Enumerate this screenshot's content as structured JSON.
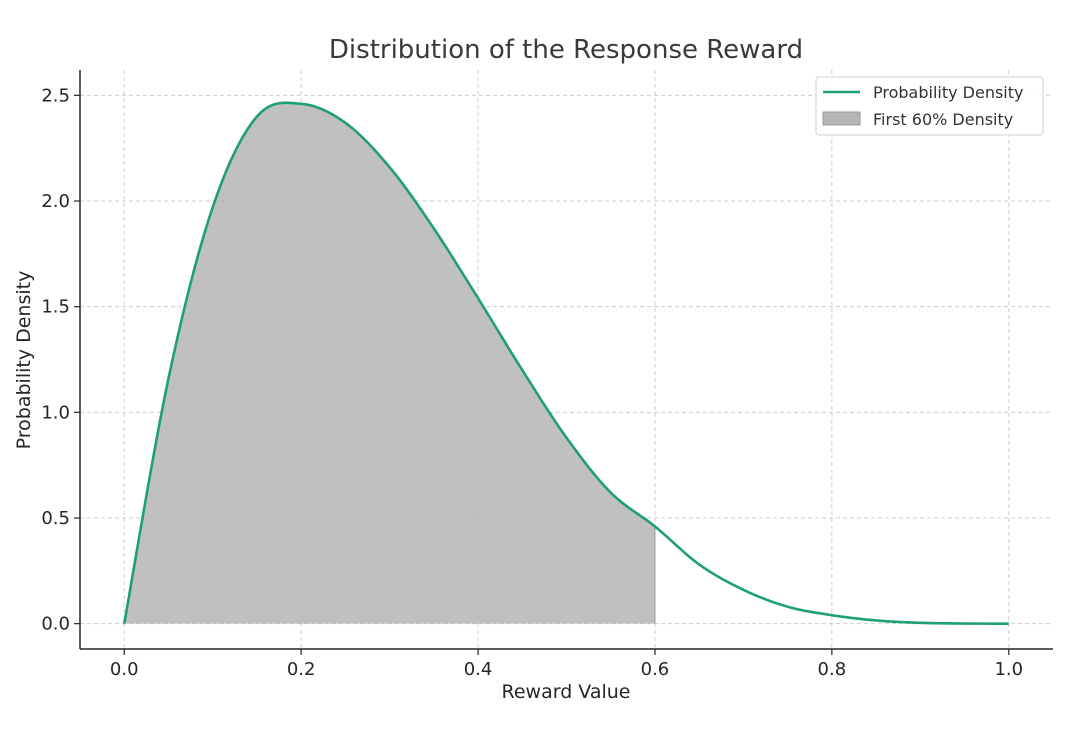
{
  "chart_data": {
    "type": "area",
    "title": "Distribution of the Response Reward",
    "xlabel": "Reward Value",
    "ylabel": "Probability Density",
    "xlim": [
      -0.05,
      1.05
    ],
    "ylim": [
      -0.12,
      2.62
    ],
    "xticks": [
      "0.0",
      "0.2",
      "0.4",
      "0.6",
      "0.8",
      "1.0"
    ],
    "yticks": [
      "0.0",
      "0.5",
      "1.0",
      "1.5",
      "2.0",
      "2.5"
    ],
    "grid": true,
    "legend_position": "top-right",
    "series": [
      {
        "name": "Probability Density",
        "kind": "line",
        "color": "#1f9e7a",
        "x": [
          0.0,
          0.05,
          0.1,
          0.15,
          0.2,
          0.25,
          0.3,
          0.35,
          0.4,
          0.45,
          0.5,
          0.55,
          0.6,
          0.65,
          0.7,
          0.75,
          0.8,
          0.85,
          0.9,
          0.95,
          1.0
        ],
        "y": [
          0.0,
          1.16,
          1.97,
          2.4,
          2.46,
          2.37,
          2.16,
          1.87,
          1.54,
          1.2,
          0.88,
          0.62,
          0.46,
          0.28,
          0.16,
          0.08,
          0.04,
          0.015,
          0.004,
          0.0005,
          0.0
        ]
      },
      {
        "name": "First 60% Density",
        "kind": "fill",
        "color": "#b5b5b5",
        "x_range": [
          0.0,
          0.6
        ]
      }
    ]
  }
}
